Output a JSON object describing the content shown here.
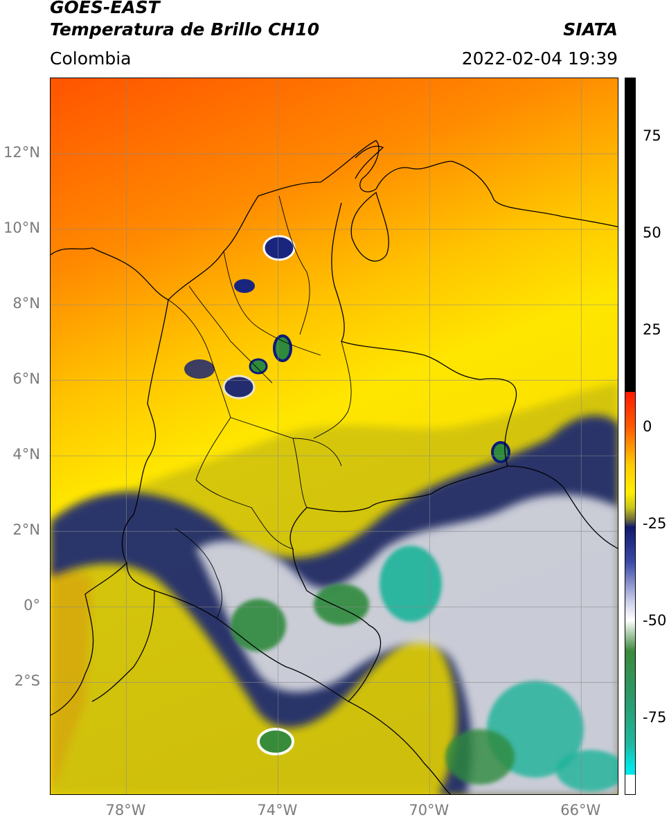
{
  "header": {
    "title_line1": "GOES-EAST",
    "title_line2": "Temperatura de Brillo CH10",
    "region": "Colombia",
    "source": "SIATA",
    "datetime": "2022-02-04 19:39"
  },
  "map": {
    "extent": {
      "lon": [
        -80,
        -65
      ],
      "lat": [
        -5,
        14
      ]
    },
    "lat_ticks": [
      {
        "value": 12,
        "label": "12°N"
      },
      {
        "value": 10,
        "label": "10°N"
      },
      {
        "value": 8,
        "label": "8°N"
      },
      {
        "value": 6,
        "label": "6°N"
      },
      {
        "value": 4,
        "label": "4°N"
      },
      {
        "value": 2,
        "label": "2°N"
      },
      {
        "value": 0,
        "label": "0°"
      },
      {
        "value": -2,
        "label": "2°S"
      }
    ],
    "lon_ticks": [
      {
        "value": -78,
        "label": "78°W"
      },
      {
        "value": -74,
        "label": "74°W"
      },
      {
        "value": -70,
        "label": "70°W"
      },
      {
        "value": -66,
        "label": "66°W"
      }
    ],
    "grid": true,
    "colors": {
      "warm": "#ff4a00",
      "mid": "#ffe600",
      "olive": "#9b9a1a",
      "navy": "#0c1a7a",
      "white": "#f4f4f4",
      "green": "#2f8a3c",
      "teal": "#1fb39a"
    }
  },
  "colorbar": {
    "range": [
      -95,
      90
    ],
    "ticks": [
      {
        "value": 75,
        "label": "75"
      },
      {
        "value": 50,
        "label": "50"
      },
      {
        "value": 25,
        "label": "25"
      },
      {
        "value": 0,
        "label": "0"
      },
      {
        "value": -25,
        "label": "-25"
      },
      {
        "value": -50,
        "label": "-50"
      },
      {
        "value": -75,
        "label": "-75"
      }
    ]
  }
}
